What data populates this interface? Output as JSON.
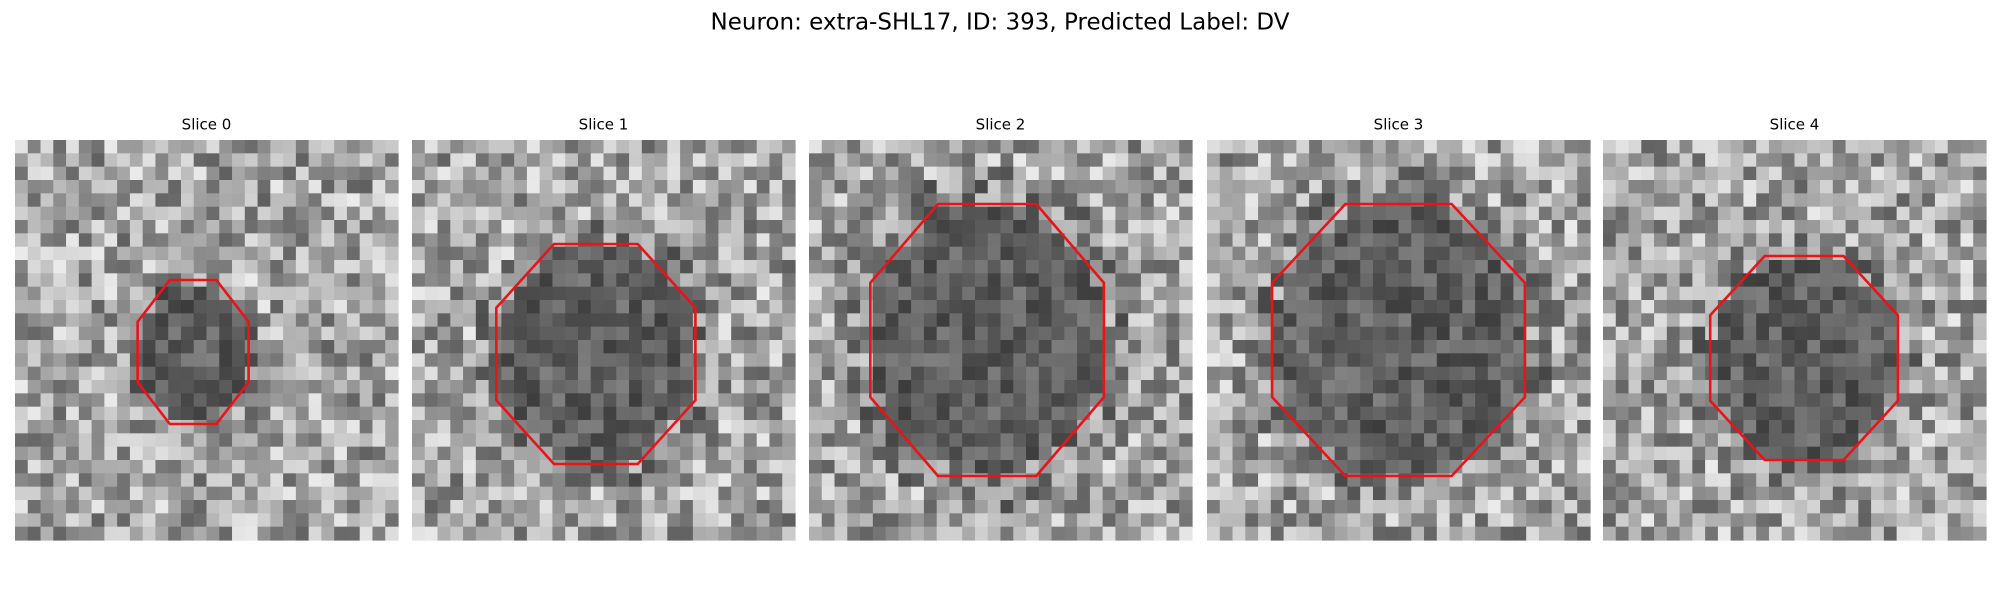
{
  "header": {
    "title": "Neuron: extra-SHL17, ID: 393, Predicted Label: DV"
  },
  "panels": [
    {
      "title": "Slice 0"
    },
    {
      "title": "Slice 1"
    },
    {
      "title": "Slice 2"
    },
    {
      "title": "Slice 3"
    },
    {
      "title": "Slice 4"
    }
  ]
}
